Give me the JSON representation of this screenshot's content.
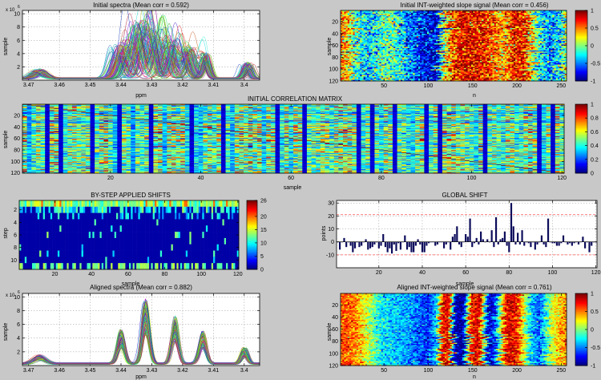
{
  "figure_background": "#c8c8c8",
  "chart_data": [
    {
      "id": "initial-spectra",
      "type": "line",
      "title": "Initial spectra (Mean corr = 0.592)",
      "xlabel": "ppm",
      "ylabel": "sample",
      "x_reversed": true,
      "xlim": [
        3.395,
        3.472
      ],
      "ylim": [
        0,
        10.5
      ],
      "exponent_label": "x 10",
      "exponent_power": "6",
      "xticks": [
        3.47,
        3.46,
        3.45,
        3.44,
        3.43,
        3.42,
        3.41,
        3.4
      ],
      "xtick_labels": [
        "3.47",
        "3.46",
        "3.45",
        "3.44",
        "3.43",
        "3.42",
        "3.41",
        "3.4"
      ],
      "yticks": [
        2,
        4,
        6,
        8,
        10
      ],
      "grid": true,
      "series_count": 120,
      "peaks": [
        {
          "ppm": 3.4665,
          "height": 1.1,
          "width": 0.0018,
          "shift_sd": 0.001
        },
        {
          "ppm": 3.4395,
          "height": 4.3,
          "width": 0.0016,
          "shift_sd": 0.0016
        },
        {
          "ppm": 3.4335,
          "height": 6.8,
          "width": 0.0016,
          "shift_sd": 0.0018
        },
        {
          "ppm": 3.429,
          "height": 5.5,
          "width": 0.0014,
          "shift_sd": 0.0017
        },
        {
          "ppm": 3.424,
          "height": 4.7,
          "width": 0.0015,
          "shift_sd": 0.0016
        },
        {
          "ppm": 3.4185,
          "height": 3.9,
          "width": 0.0015,
          "shift_sd": 0.0016
        },
        {
          "ppm": 3.4125,
          "height": 3.1,
          "width": 0.001,
          "shift_sd": 0.0006
        },
        {
          "ppm": 3.399,
          "height": 2.0,
          "width": 0.001,
          "shift_sd": 0.0008
        }
      ]
    },
    {
      "id": "initial-slope",
      "type": "heatmap",
      "title": "Initial INT-weighted slope signal (Mean corr = 0.456)",
      "xlabel": "n",
      "ylabel": "sample",
      "xlim": [
        1,
        256
      ],
      "ylim": [
        1,
        120
      ],
      "xticks": [
        50,
        100,
        150,
        200,
        250
      ],
      "yticks": [
        20,
        40,
        60,
        80,
        100,
        120
      ],
      "colormap": "jet",
      "clim": [
        -1,
        1
      ],
      "colorbar_ticks": [
        1,
        0.5,
        0,
        -0.5,
        -1
      ],
      "colorbar_labels": [
        "1",
        "0.5",
        "0",
        "-0.5",
        "-1"
      ],
      "column_profile": [
        [
          1,
          0.55
        ],
        [
          10,
          0.3
        ],
        [
          20,
          -0.2
        ],
        [
          35,
          -0.35
        ],
        [
          55,
          0.0
        ],
        [
          75,
          -0.4
        ],
        [
          95,
          -0.75
        ],
        [
          110,
          -0.85
        ],
        [
          118,
          0.2
        ],
        [
          130,
          0.7
        ],
        [
          145,
          0.8
        ],
        [
          160,
          0.75
        ],
        [
          175,
          0.55
        ],
        [
          185,
          0.3
        ],
        [
          195,
          0.75
        ],
        [
          210,
          0.7
        ],
        [
          222,
          -0.1
        ],
        [
          235,
          -0.5
        ],
        [
          250,
          -0.3
        ],
        [
          256,
          0.2
        ]
      ],
      "jitter": 0.45
    },
    {
      "id": "initial-correlation",
      "type": "heatmap",
      "title": "INITIAL CORRELATION MATRIX",
      "xlabel": "sample",
      "ylabel": "sample",
      "xlim": [
        1,
        120
      ],
      "ylim": [
        1,
        120
      ],
      "xticks": [
        20,
        40,
        60,
        80,
        100,
        120
      ],
      "yticks": [
        20,
        40,
        60,
        80,
        100,
        120
      ],
      "colormap": "jet",
      "clim": [
        0,
        1
      ],
      "colorbar_ticks": [
        1,
        0.8,
        0.6,
        0.4,
        0.2,
        0
      ],
      "colorbar_labels": [
        "1",
        "0.8",
        "0.6",
        "0.4",
        "0.2",
        "0"
      ],
      "dark_columns": [
        6,
        9,
        16,
        22,
        29,
        38,
        45,
        57,
        63,
        75,
        78,
        83,
        90,
        93,
        103,
        115,
        118
      ]
    },
    {
      "id": "by-step-shifts",
      "type": "heatmap",
      "title": "BY-STEP APPLIED SHIFTS",
      "xlabel": "sample",
      "ylabel": "step",
      "xlim": [
        1,
        120
      ],
      "ylim": [
        1,
        11
      ],
      "xticks": [
        20,
        40,
        60,
        80,
        100,
        120
      ],
      "yticks": [
        2,
        4,
        6,
        8,
        10
      ],
      "colormap": "jet",
      "clim": [
        0,
        26
      ],
      "colorbar_ticks": [
        26,
        20,
        15,
        10,
        5,
        0
      ],
      "colorbar_labels": [
        "26",
        "20",
        "15",
        "10",
        "5",
        "0"
      ]
    },
    {
      "id": "global-shift",
      "type": "bar",
      "title": "GLOBAL SHIFT",
      "xlabel": "sample",
      "ylabel": "points",
      "xlim": [
        0.5,
        120.5
      ],
      "ylim": [
        -20,
        32
      ],
      "xticks": [
        20,
        40,
        60,
        80,
        100,
        120
      ],
      "yticks": [
        -10,
        0,
        10,
        20,
        30
      ],
      "grid": true,
      "bar_color": "#0b0b5a",
      "threshold_lines": [
        21,
        -10
      ],
      "threshold_color": "#ff5555",
      "values": [
        0,
        -6,
        0,
        3,
        -4,
        0,
        -3,
        -8,
        -5,
        0,
        -4,
        -3,
        0,
        2,
        -6,
        -5,
        -4,
        -2,
        0,
        -5,
        -3,
        6,
        -4,
        -8,
        -5,
        -9,
        -2,
        -7,
        -1,
        -6,
        0,
        5,
        -6,
        -4,
        -8,
        -8,
        -3,
        2,
        -2,
        -8,
        -8,
        -3,
        -1,
        0,
        0,
        -3,
        -2,
        0,
        0,
        -5,
        -2,
        0,
        -6,
        4,
        6,
        12,
        -2,
        -4,
        0,
        6,
        4,
        18,
        -4,
        -1,
        3,
        -2,
        8,
        2,
        0,
        2,
        0,
        9,
        -4,
        19,
        -2,
        2,
        3,
        8,
        -3,
        -8,
        30,
        12,
        -2,
        7,
        -2,
        9,
        -3,
        0,
        -1,
        -4,
        0,
        -6,
        -2,
        0,
        5,
        -2,
        -4,
        18,
        0,
        -1,
        -1,
        -3,
        -3,
        -1,
        5,
        0,
        -2,
        -1,
        -3,
        -1,
        0,
        -2,
        0,
        4,
        -5,
        0,
        -8,
        -3,
        0,
        0
      ]
    },
    {
      "id": "aligned-spectra",
      "type": "line",
      "title": "Aligned spectra (Mean corr = 0.882)",
      "xlabel": "ppm",
      "ylabel": "sample",
      "x_reversed": true,
      "xlim": [
        3.395,
        3.472
      ],
      "ylim": [
        0,
        10.5
      ],
      "exponent_label": "x 10",
      "exponent_power": "6",
      "xticks": [
        3.47,
        3.46,
        3.45,
        3.44,
        3.43,
        3.42,
        3.41,
        3.4
      ],
      "xtick_labels": [
        "3.47",
        "3.46",
        "3.45",
        "3.44",
        "3.43",
        "3.42",
        "3.41",
        "3.4"
      ],
      "yticks": [
        2,
        4,
        6,
        8,
        10
      ],
      "grid": true,
      "series_count": 120,
      "peaks": [
        {
          "ppm": 3.4665,
          "height": 1.0,
          "width": 0.0018,
          "shift_sd": 0.0004
        },
        {
          "ppm": 3.44,
          "height": 4.0,
          "width": 0.0011,
          "shift_sd": 0.0002
        },
        {
          "ppm": 3.432,
          "height": 7.6,
          "width": 0.0011,
          "shift_sd": 0.0002
        },
        {
          "ppm": 3.4225,
          "height": 5.6,
          "width": 0.0011,
          "shift_sd": 0.0002
        },
        {
          "ppm": 3.4135,
          "height": 3.9,
          "width": 0.0011,
          "shift_sd": 0.0002
        },
        {
          "ppm": 3.4,
          "height": 1.9,
          "width": 0.001,
          "shift_sd": 0.0003
        }
      ]
    },
    {
      "id": "aligned-slope",
      "type": "heatmap",
      "title": "Aligned INT-weighted slope signal (Mean corr = 0.761)",
      "xlabel": "n",
      "ylabel": "sample",
      "xlim": [
        1,
        256
      ],
      "ylim": [
        1,
        120
      ],
      "xticks": [
        50,
        100,
        150,
        200,
        250
      ],
      "yticks": [
        20,
        40,
        60,
        80,
        100,
        120
      ],
      "colormap": "jet",
      "clim": [
        -1,
        1
      ],
      "colorbar_ticks": [
        1,
        0.5,
        0,
        -0.5,
        -1
      ],
      "colorbar_labels": [
        "1",
        "0.5",
        "0",
        "-0.5",
        "-1"
      ],
      "column_profile": [
        [
          1,
          0.6
        ],
        [
          15,
          0.55
        ],
        [
          30,
          0.2
        ],
        [
          45,
          -0.25
        ],
        [
          60,
          -0.35
        ],
        [
          80,
          -0.45
        ],
        [
          100,
          -0.7
        ],
        [
          110,
          -0.3
        ],
        [
          116,
          0.8
        ],
        [
          124,
          0.75
        ],
        [
          130,
          -0.95
        ],
        [
          140,
          -0.95
        ],
        [
          148,
          0.7
        ],
        [
          158,
          0.85
        ],
        [
          168,
          -0.9
        ],
        [
          176,
          -0.6
        ],
        [
          188,
          0.8
        ],
        [
          200,
          0.75
        ],
        [
          215,
          -0.3
        ],
        [
          225,
          -0.6
        ],
        [
          240,
          0.2
        ],
        [
          256,
          0.5
        ]
      ],
      "jitter": 0.25
    }
  ]
}
